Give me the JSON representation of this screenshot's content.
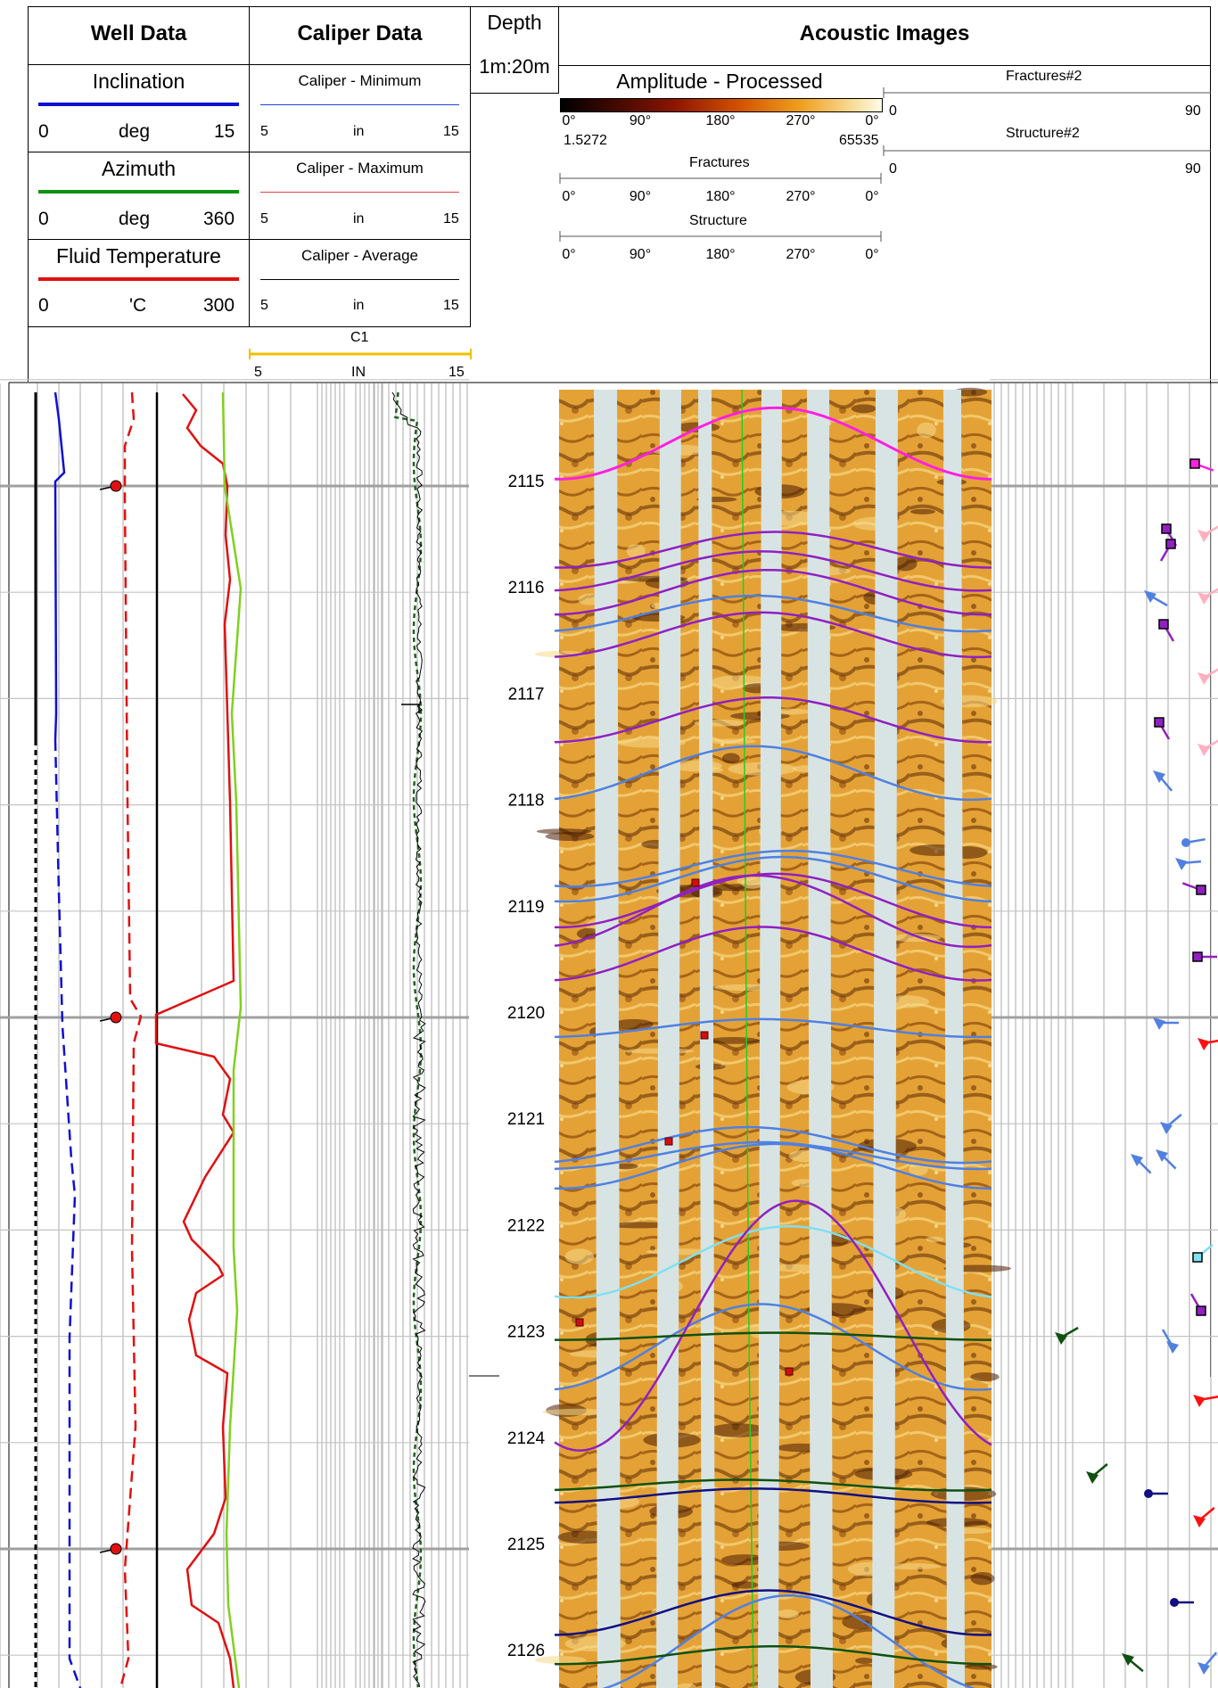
{
  "header": {
    "well_data": {
      "title": "Well Data",
      "curves": [
        {
          "name": "Inclination",
          "left": "0",
          "unit": "deg",
          "right": "15",
          "color": "#1010d0",
          "style": "solid"
        },
        {
          "name": "Azimuth",
          "left": "0",
          "unit": "deg",
          "right": "360",
          "color": "#109010",
          "style": "solid"
        },
        {
          "name": "Fluid Temperature",
          "left": "0",
          "unit": "'C",
          "right": "300",
          "color": "#e01010",
          "style": "solid"
        }
      ]
    },
    "caliper_data": {
      "title": "Caliper Data",
      "curves": [
        {
          "name": "Caliper - Minimum",
          "left": "5",
          "unit": "in",
          "right": "15",
          "color": "#2040e0"
        },
        {
          "name": "Caliper - Maximum",
          "left": "5",
          "unit": "in",
          "right": "15",
          "color": "#e04040"
        },
        {
          "name": "Caliper - Average",
          "left": "5",
          "unit": "in",
          "right": "15",
          "color": "#000000"
        }
      ],
      "c1": {
        "name": "C1",
        "left": "5",
        "unit": "IN",
        "right": "15",
        "color": "#f0c000"
      }
    },
    "depth": {
      "title": "Depth",
      "scale": "1m:20m"
    },
    "acoustic": {
      "title": "Acoustic Images",
      "amplitude": {
        "name": "Amplitude - Processed",
        "ticks": [
          "0°",
          "90°",
          "180°",
          "270°",
          "0°"
        ],
        "min": "1.5272",
        "max": "65535"
      },
      "fractures": {
        "name": "Fractures",
        "ticks": [
          "0°",
          "90°",
          "180°",
          "270°",
          "0°"
        ]
      },
      "structure": {
        "name": "Structure",
        "ticks": [
          "0°",
          "90°",
          "180°",
          "270°",
          "0°"
        ]
      },
      "fractures2": {
        "name": "Fractures#2",
        "left": "0",
        "right": "90"
      },
      "structure2": {
        "name": "Structure#2",
        "left": "0",
        "right": "90"
      }
    }
  },
  "depth_labels": [
    "2115",
    "2116",
    "2117",
    "2118",
    "2119",
    "2120",
    "2121",
    "2122",
    "2123",
    "2124",
    "2125",
    "2126"
  ],
  "colors": {
    "inclination": "#1010d0",
    "azimuth_green": "#80d020",
    "temperature": "#e01010",
    "caliper_dash": "#206020",
    "magenta": "#ff20e0",
    "purple": "#9020c0",
    "light_blue": "#5080e0",
    "cyan": "#80e0f0",
    "dark_green": "#105010",
    "navy": "#101080",
    "pink": "#ffb0c0"
  }
}
